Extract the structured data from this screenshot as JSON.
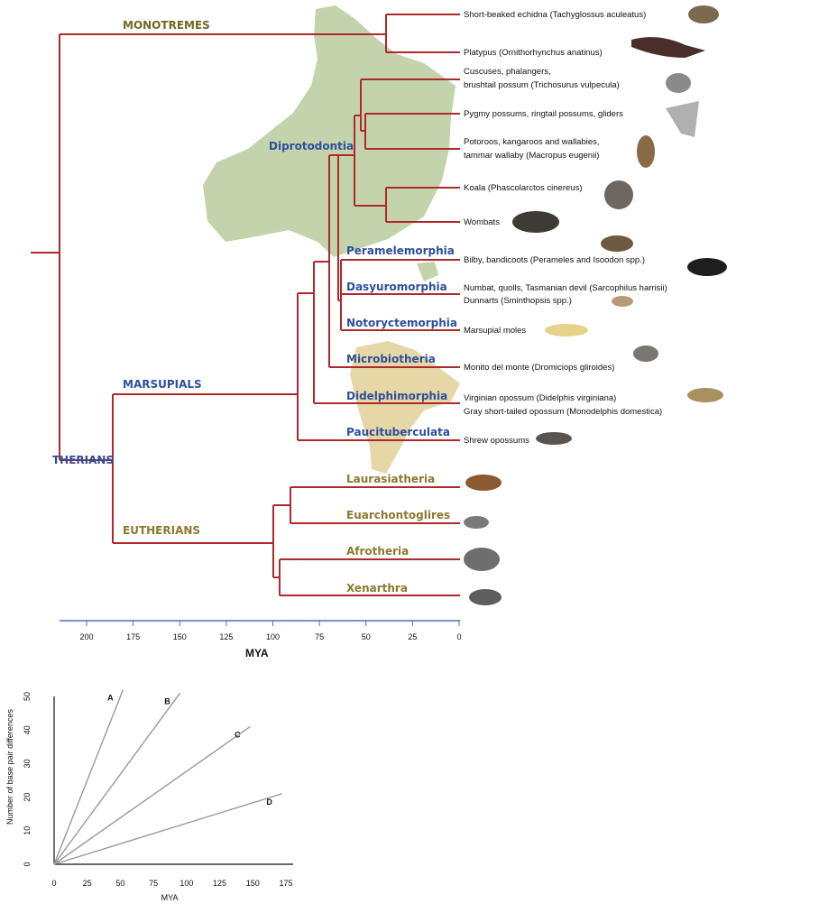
{
  "tree": {
    "colors": {
      "branch": "#b0282b",
      "marsupial": "#2e4f9c",
      "eutherian": "#8b7a2e",
      "monotreme": "#6e6a1f",
      "axis": "#4a6fb5"
    },
    "groups": {
      "monotremes": "MONOTREMES",
      "therians": "THERIANS",
      "marsupials": "MARSUPIALS",
      "eutherians": "EUTHERIANS"
    },
    "orders": {
      "diprotodontia": "Diprotodontia",
      "peramelemorphia": "Peramelemorphia",
      "dasyuromorphia": "Dasyuromorphia",
      "notoryctemorphia": "Notoryctemorphia",
      "microbiotheria": "Microbiotheria",
      "didelphimorphia": "Didelphimorphia",
      "paucituberculata": "Paucituberculata",
      "laurasiatheria": "Laurasiatheria",
      "euarchontoglires": "Euarchontoglires",
      "afrotheria": "Afrotheria",
      "xenarthra": "Xenarthra"
    },
    "leaves": {
      "echidna": "Short-beaked echidna (Tachyglossus aculeatus)",
      "platypus": "Platypus (Ornithorhynchus anatinus)",
      "cuscus1": "Cuscuses, phalangers,",
      "cuscus2": "brushtail possum (Trichosurus vulpecula)",
      "pygmy": "Pygmy possums, ringtail possums, gliders",
      "potoroo1": "Potoroos, kangaroos and wallabies,",
      "potoroo2": "tammar wallaby (Macropus eugenii)",
      "koala": "Koala (Phascolarctos cinereus)",
      "wombats": "Wombats",
      "bilby": "Bilby, bandicoots (Perameles and Isoodon spp.)",
      "numbat": "Numbat, quolls, Tasmanian devil (Sarcophilus harrisii)",
      "dunnarts": "Dunnarts (Sminthopsis spp.)",
      "moles": "Marsupial moles",
      "monito": "Monito del monte (Dromiciops gliroides)",
      "virginian": "Virginian opossum (Didelphis virginiana)",
      "gray": "Gray short-tailed opossum (Monodelphis domestica)",
      "shrew": "Shrew opossums"
    },
    "axis": {
      "label": "MYA",
      "ticks": [
        "200",
        "175",
        "150",
        "125",
        "100",
        "75",
        "50",
        "25",
        "0"
      ]
    }
  },
  "chart_data": {
    "type": "line",
    "xlabel": "MYA",
    "ylabel": "Number of base pair differences",
    "xticks": [
      "0",
      "25",
      "50",
      "75",
      "100",
      "125",
      "150",
      "175"
    ],
    "yticks": [
      "0",
      "10",
      "20",
      "30",
      "40",
      "50"
    ],
    "xlim": [
      0,
      180
    ],
    "ylim": [
      0,
      52
    ],
    "series": [
      {
        "name": "A",
        "x": [
          0,
          52
        ],
        "y": [
          0,
          52
        ]
      },
      {
        "name": "B",
        "x": [
          0,
          95
        ],
        "y": [
          0,
          51
        ]
      },
      {
        "name": "C",
        "x": [
          0,
          148
        ],
        "y": [
          0,
          41
        ]
      },
      {
        "name": "D",
        "x": [
          0,
          172
        ],
        "y": [
          0,
          21
        ]
      }
    ],
    "grid": false
  }
}
